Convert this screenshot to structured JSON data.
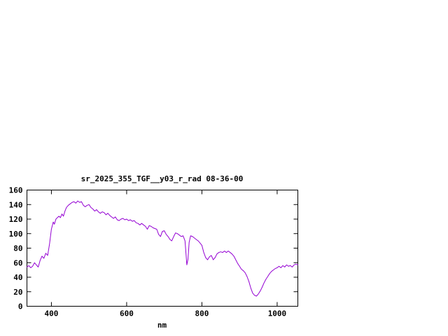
{
  "page": {
    "background": "#ffffff"
  },
  "chart": {
    "colors": {
      "line": "#9400d3",
      "axis": "#000000",
      "text": "#000000"
    }
  },
  "chart_data": {
    "type": "line",
    "title": "sr_2025_355_TGF__y03_r_rad 08-36-00",
    "xlabel": "nm",
    "ylabel": "",
    "xlim": [
      335,
      1055
    ],
    "ylim": [
      0,
      160
    ],
    "xticks": [
      400,
      600,
      800,
      1000
    ],
    "yticks": [
      0,
      20,
      40,
      60,
      80,
      100,
      120,
      140,
      160
    ],
    "grid": false,
    "legend": "none",
    "series": [
      {
        "name": "sr_2025_355_TGF__y03_r_rad",
        "color": "#9400d3",
        "points": [
          [
            335,
            54
          ],
          [
            340,
            56
          ],
          [
            345,
            53
          ],
          [
            350,
            55
          ],
          [
            355,
            60
          ],
          [
            360,
            57
          ],
          [
            365,
            54
          ],
          [
            370,
            63
          ],
          [
            375,
            69
          ],
          [
            380,
            66
          ],
          [
            385,
            73
          ],
          [
            390,
            70
          ],
          [
            395,
            86
          ],
          [
            400,
            106
          ],
          [
            405,
            116
          ],
          [
            408,
            113
          ],
          [
            412,
            120
          ],
          [
            416,
            122
          ],
          [
            420,
            124
          ],
          [
            424,
            122
          ],
          [
            428,
            127
          ],
          [
            432,
            124
          ],
          [
            436,
            131
          ],
          [
            440,
            136
          ],
          [
            445,
            139
          ],
          [
            450,
            141
          ],
          [
            455,
            143
          ],
          [
            460,
            144
          ],
          [
            465,
            142
          ],
          [
            470,
            145
          ],
          [
            475,
            143
          ],
          [
            480,
            144
          ],
          [
            485,
            139
          ],
          [
            490,
            137
          ],
          [
            495,
            139
          ],
          [
            500,
            140
          ],
          [
            505,
            136
          ],
          [
            510,
            134
          ],
          [
            515,
            131
          ],
          [
            520,
            133
          ],
          [
            525,
            130
          ],
          [
            530,
            128
          ],
          [
            535,
            130
          ],
          [
            540,
            129
          ],
          [
            545,
            126
          ],
          [
            550,
            128
          ],
          [
            555,
            125
          ],
          [
            560,
            123
          ],
          [
            565,
            121
          ],
          [
            570,
            123
          ],
          [
            575,
            119
          ],
          [
            580,
            118
          ],
          [
            585,
            120
          ],
          [
            590,
            121
          ],
          [
            595,
            119
          ],
          [
            600,
            120
          ],
          [
            605,
            118
          ],
          [
            610,
            119
          ],
          [
            615,
            117
          ],
          [
            620,
            118
          ],
          [
            625,
            115
          ],
          [
            630,
            114
          ],
          [
            635,
            112
          ],
          [
            640,
            114
          ],
          [
            645,
            112
          ],
          [
            650,
            110
          ],
          [
            655,
            106
          ],
          [
            660,
            111
          ],
          [
            665,
            110
          ],
          [
            670,
            108
          ],
          [
            675,
            107
          ],
          [
            680,
            106
          ],
          [
            685,
            99
          ],
          [
            690,
            96
          ],
          [
            695,
            103
          ],
          [
            700,
            104
          ],
          [
            705,
            99
          ],
          [
            710,
            96
          ],
          [
            715,
            92
          ],
          [
            720,
            90
          ],
          [
            725,
            96
          ],
          [
            730,
            101
          ],
          [
            735,
            100
          ],
          [
            740,
            98
          ],
          [
            745,
            96
          ],
          [
            750,
            97
          ],
          [
            755,
            90
          ],
          [
            758,
            70
          ],
          [
            760,
            57
          ],
          [
            763,
            65
          ],
          [
            766,
            88
          ],
          [
            770,
            97
          ],
          [
            775,
            96
          ],
          [
            780,
            94
          ],
          [
            785,
            92
          ],
          [
            790,
            90
          ],
          [
            795,
            87
          ],
          [
            800,
            84
          ],
          [
            805,
            74
          ],
          [
            810,
            67
          ],
          [
            815,
            64
          ],
          [
            820,
            68
          ],
          [
            825,
            70
          ],
          [
            830,
            64
          ],
          [
            835,
            67
          ],
          [
            840,
            72
          ],
          [
            845,
            74
          ],
          [
            850,
            75
          ],
          [
            855,
            74
          ],
          [
            860,
            76
          ],
          [
            865,
            74
          ],
          [
            870,
            76
          ],
          [
            875,
            74
          ],
          [
            880,
            72
          ],
          [
            885,
            69
          ],
          [
            890,
            64
          ],
          [
            895,
            59
          ],
          [
            900,
            55
          ],
          [
            905,
            51
          ],
          [
            910,
            49
          ],
          [
            915,
            46
          ],
          [
            920,
            41
          ],
          [
            925,
            34
          ],
          [
            930,
            25
          ],
          [
            935,
            18
          ],
          [
            940,
            15
          ],
          [
            945,
            14
          ],
          [
            950,
            17
          ],
          [
            955,
            21
          ],
          [
            960,
            26
          ],
          [
            965,
            32
          ],
          [
            970,
            37
          ],
          [
            975,
            41
          ],
          [
            980,
            45
          ],
          [
            985,
            48
          ],
          [
            990,
            50
          ],
          [
            995,
            52
          ],
          [
            1000,
            53
          ],
          [
            1005,
            55
          ],
          [
            1010,
            53
          ],
          [
            1015,
            56
          ],
          [
            1020,
            54
          ],
          [
            1025,
            57
          ],
          [
            1030,
            55
          ],
          [
            1035,
            56
          ],
          [
            1040,
            54
          ],
          [
            1045,
            57
          ],
          [
            1050,
            58
          ],
          [
            1055,
            57
          ]
        ]
      }
    ]
  }
}
